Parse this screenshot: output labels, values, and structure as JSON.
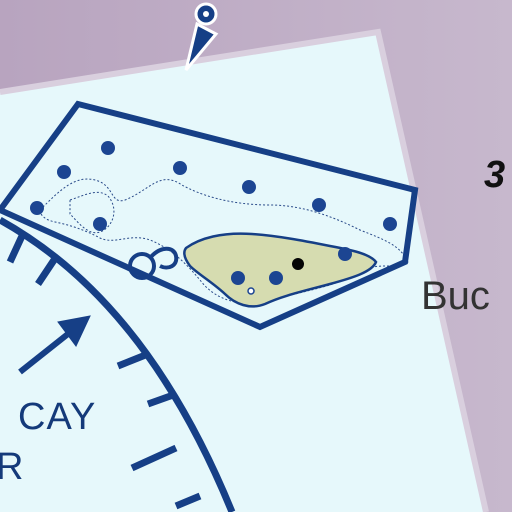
{
  "labels": {
    "cay_partial": "CAY",
    "r_partial": "R",
    "buc_partial": "Buc",
    "number_partial": "3"
  },
  "colors": {
    "water": "#e6f8fb",
    "land_band": "#b9a6c0",
    "boundary": "#163f86",
    "island": "#d6dcb0",
    "marker": "#1c4592"
  },
  "icons": {
    "north_arrow": "north-arrow-icon",
    "direction_arrow": "direction-arrow-icon",
    "mooring": "mooring-icon"
  }
}
